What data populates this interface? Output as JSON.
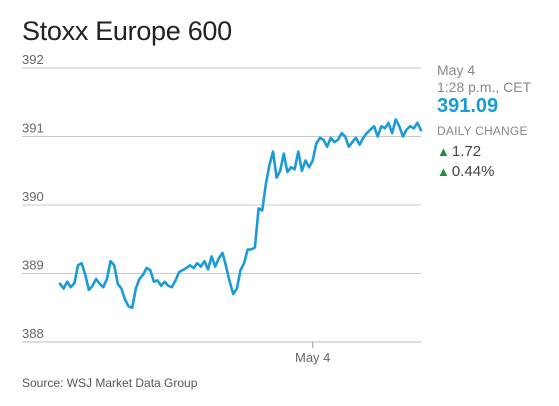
{
  "title": "Stoxx Europe 600",
  "sidebar": {
    "date": "May 4",
    "time": "1:28 p.m., CET",
    "price": "391.09",
    "change_label": "DAILY CHANGE",
    "change_abs": "1.72",
    "change_pct": "0.44%",
    "up_color": "#1a8f3c"
  },
  "source": "Source: WSJ Market Data Group",
  "chart_data": {
    "type": "line",
    "line_color": "#1a9bd7",
    "yticks": [
      388,
      389,
      390,
      391,
      392
    ],
    "ytick_labels": [
      "388",
      "389",
      "390",
      "391",
      "392"
    ],
    "ylim": [
      388,
      392
    ],
    "xlim": [
      0,
      100
    ],
    "xtick_positions": [
      70
    ],
    "xtick_labels": [
      "May 4"
    ],
    "grid": "horizontal",
    "series": [
      {
        "x": [
          0,
          1,
          2,
          3,
          4,
          5,
          6,
          7,
          8,
          9,
          10,
          11,
          12,
          13,
          14,
          15,
          16,
          17,
          18,
          19,
          20,
          21,
          22,
          23,
          24,
          25,
          26,
          27,
          28,
          29,
          30,
          31,
          32,
          33,
          34,
          35,
          36,
          37,
          38,
          39,
          40,
          41,
          42,
          43,
          44,
          45,
          46,
          47,
          48,
          49,
          50,
          51,
          52,
          53,
          54,
          55,
          56,
          57,
          58,
          59,
          60,
          61,
          62,
          63,
          64,
          65,
          66,
          67,
          68,
          69,
          70,
          71,
          72,
          73,
          74,
          75,
          76,
          77,
          78,
          79,
          80,
          81,
          82,
          83,
          84,
          85,
          86,
          87,
          88,
          89,
          90,
          91,
          92,
          93,
          94,
          95,
          96,
          97,
          98,
          99,
          100
        ],
        "y": [
          388.85,
          388.78,
          388.88,
          388.8,
          388.86,
          389.12,
          389.15,
          388.98,
          388.76,
          388.82,
          388.92,
          388.85,
          388.8,
          388.92,
          389.18,
          389.12,
          388.85,
          388.78,
          388.62,
          388.52,
          388.5,
          388.78,
          388.92,
          388.98,
          389.08,
          389.05,
          388.88,
          388.9,
          388.82,
          388.88,
          388.82,
          388.8,
          388.9,
          389.02,
          389.05,
          389.08,
          389.12,
          389.08,
          389.15,
          389.1,
          389.18,
          389.06,
          389.25,
          389.1,
          389.22,
          389.3,
          389.1,
          388.88,
          388.7,
          388.78,
          389.05,
          389.15,
          389.35,
          389.35,
          389.38,
          389.95,
          389.92,
          390.3,
          390.58,
          390.78,
          390.4,
          390.5,
          390.75,
          390.48,
          390.55,
          390.52,
          390.78,
          390.5,
          390.65,
          390.55,
          390.65,
          390.9,
          390.98,
          390.95,
          390.85,
          390.98,
          390.92,
          390.95,
          391.05,
          391.0,
          390.85,
          390.92,
          390.98,
          390.88,
          390.98,
          391.05,
          391.1,
          391.15,
          391.0,
          391.15,
          391.12,
          391.2,
          391.05,
          391.25,
          391.15,
          391.0,
          391.1,
          391.15,
          391.12,
          391.2,
          391.09
        ]
      }
    ]
  }
}
